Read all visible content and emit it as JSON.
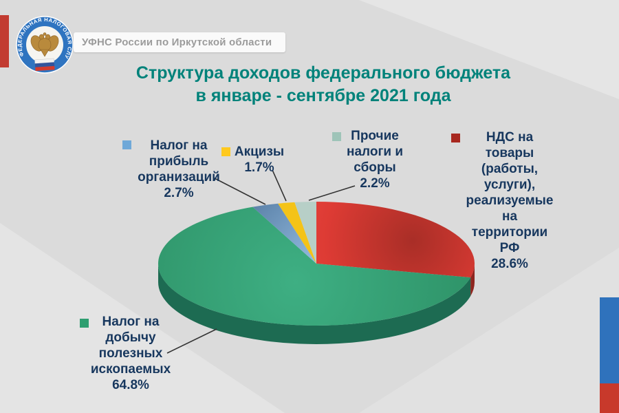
{
  "header": {
    "org_label": "УФНС России по Иркутской области",
    "logo": {
      "ring_text": "ФЕДЕРАЛЬНАЯ НАЛОГОВАЯ СЛУЖБА",
      "ring_color": "#2F74C0",
      "flag_colors": [
        "#F2F2F2",
        "#33549C",
        "#D23B2E"
      ],
      "eagle_color": "#B98A3C"
    }
  },
  "title": {
    "line1": "Структура доходов федерального бюджета",
    "line2": "в январе - сентябре 2021 года",
    "color": "#00827A"
  },
  "chart_data": {
    "type": "pie",
    "style": "3d",
    "title": "Структура доходов федерального бюджета в январе - сентябре 2021 года",
    "unit": "%",
    "legend_position": "around",
    "start_angle": 0,
    "clockwise_order": [
      "nds",
      "ndpi",
      "pribyl",
      "akcizy",
      "prochie"
    ],
    "slices": [
      {
        "key": "pribyl",
        "name": "Налог на прибыль организаций",
        "value": 2.7,
        "label_text": "Налог на\nприбыль\nорганизаций\n2.7%",
        "color": "#7FA8CC",
        "gradient": [
          "#597FA6",
          "#9EC6EA"
        ],
        "marker_color": "#6FA8D8"
      },
      {
        "key": "akcizy",
        "name": "Акцизы",
        "value": 1.7,
        "label_text": "Акцизы\n1.7%",
        "color": "#F4C318",
        "marker_color": "#FFC91E"
      },
      {
        "key": "prochie",
        "name": "Прочие налоги и сборы",
        "value": 2.2,
        "label_text": "Прочие\nналоги и\nсборы\n2.2%",
        "color": "#B7CFC7",
        "marker_color": "#9EC4B8"
      },
      {
        "key": "nds",
        "name": "НДС на товары (работы, услуги), реализуемые на территории РФ",
        "value": 28.6,
        "label_text": "НДС на\nтовары\n(работы,\nуслуги),\nреализуемые\nна\nтерритории\nРФ\n28.6%",
        "color": "#DD3B34",
        "color_bright": "#EC4840",
        "color_shadow": "#A92E27",
        "side_color": "#8F2620",
        "marker_color": "#A8281F"
      },
      {
        "key": "ndpi",
        "name": "Налог на добычу полезных ископаемых",
        "value": 64.8,
        "label_text": "Налог на\nдобычу\nполезных\nископаемых\n64.8%",
        "color": "#2F9469",
        "color_bright": "#3EAF83",
        "side_color": "#1D6B52",
        "marker_color": "#2E9E70"
      }
    ]
  },
  "decor": {
    "left_bar_color": "#C23B31",
    "right_bar_top_color": "#2F72BC",
    "right_bar_bottom_color": "#C8392B",
    "background_color": "#DBDBDB"
  }
}
